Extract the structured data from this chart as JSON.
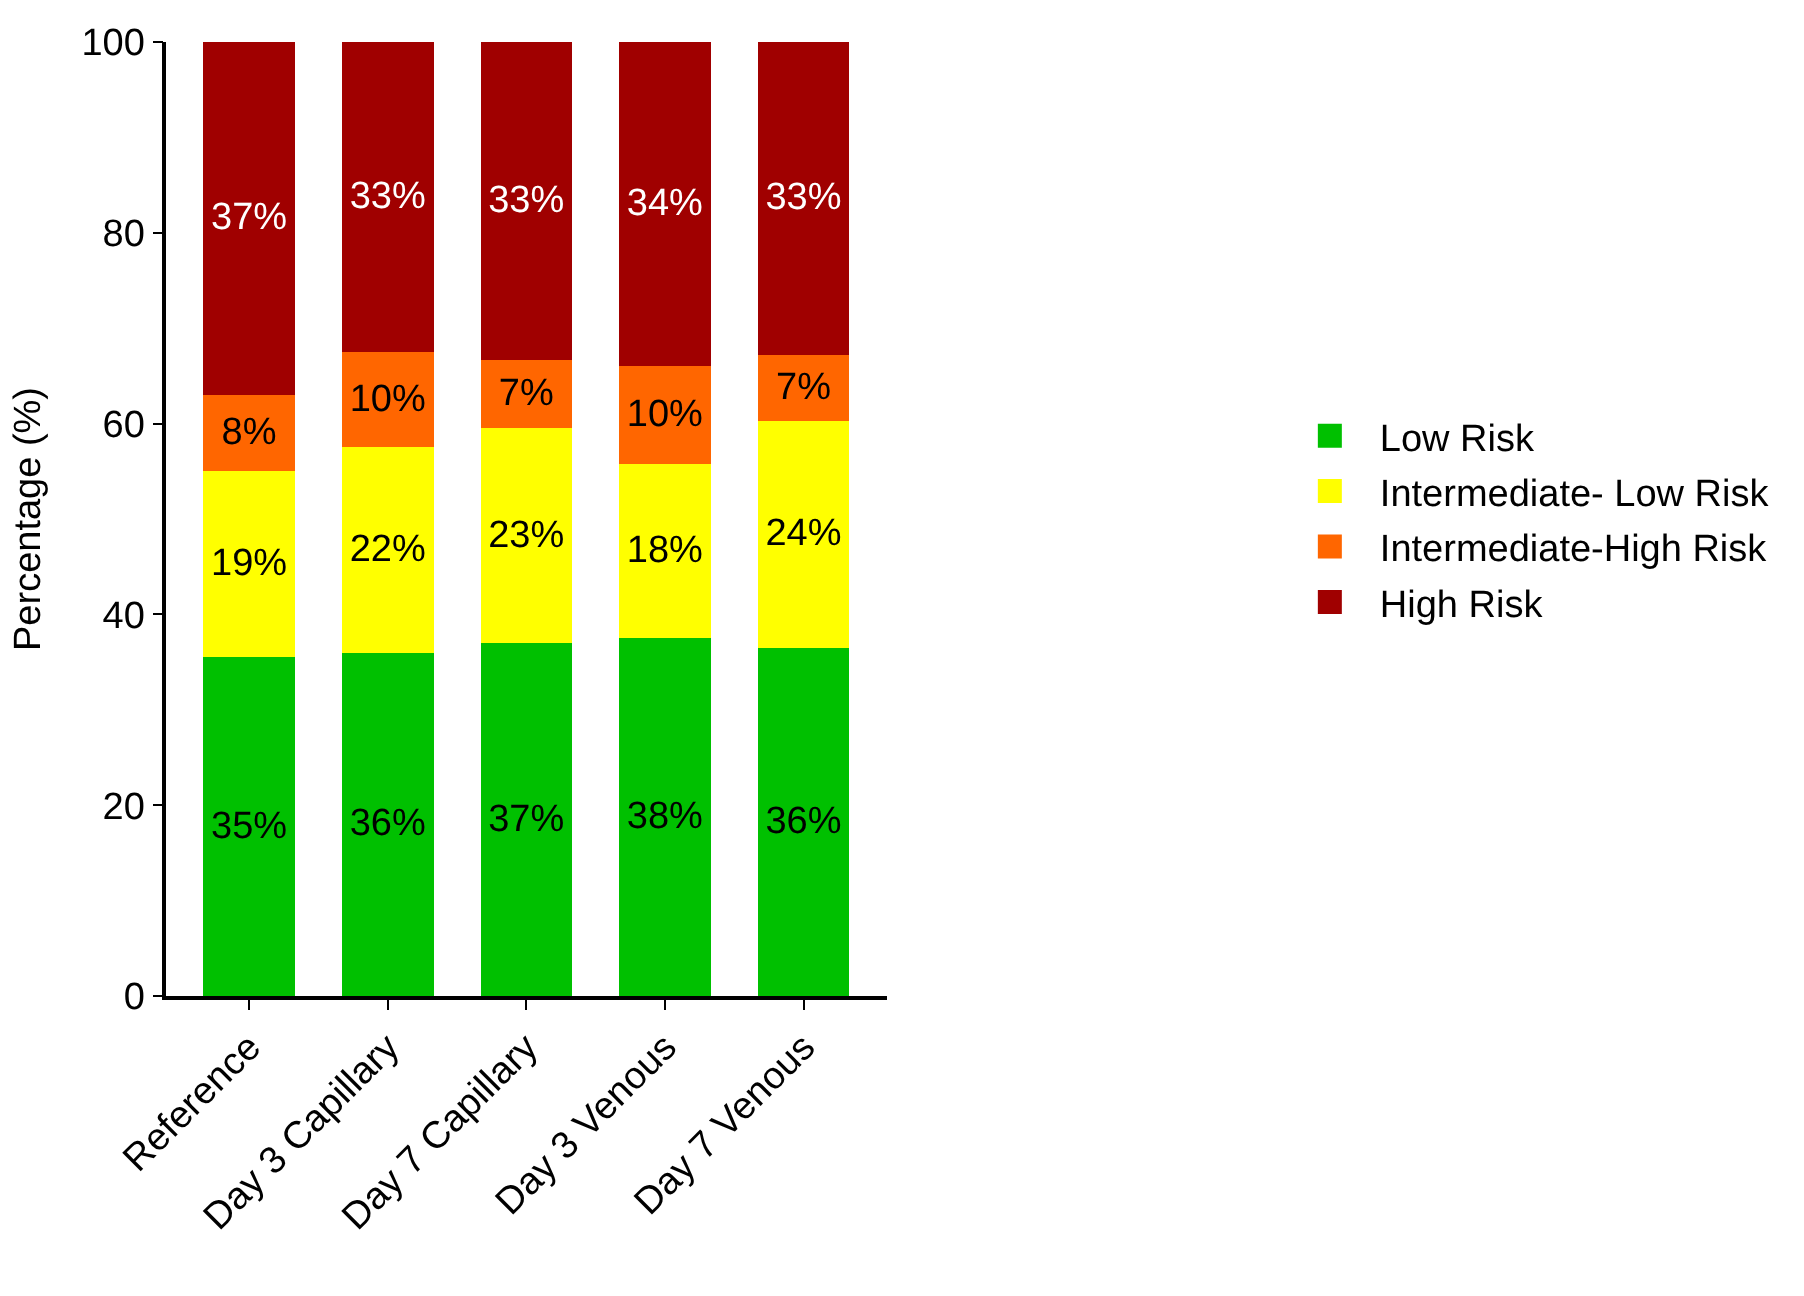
{
  "chart_data": {
    "type": "bar",
    "stacked": true,
    "ylabel": "Percentage (%)",
    "categories": [
      "Reference",
      "Day 3 Capillary",
      "Day 7 Capillary",
      "Day 3 Venous",
      "Day 7 Venous"
    ],
    "series": [
      {
        "name": "Low Risk",
        "color": "#00c000",
        "values": [
          35.5,
          36,
          37,
          37.5,
          36.5
        ],
        "value_labels": [
          "35%",
          "36%",
          "37%",
          "38%",
          "36%"
        ]
      },
      {
        "name": "Intermediate- Low Risk",
        "color": "#ffff00",
        "values": [
          19.5,
          21.5,
          22.5,
          18.3,
          23.8
        ],
        "value_labels": [
          "19%",
          "22%",
          "23%",
          "18%",
          "24%"
        ]
      },
      {
        "name": "Intermediate-High Risk",
        "color": "#ff6600",
        "values": [
          8,
          10,
          7.2,
          10.2,
          6.9
        ],
        "value_labels": [
          "8%",
          "10%",
          "7%",
          "10%",
          "7%"
        ]
      },
      {
        "name": "High Risk",
        "color": "#a00000",
        "values": [
          37,
          32.5,
          33.3,
          34,
          32.8
        ],
        "value_labels": [
          "37%",
          "33%",
          "33%",
          "34%",
          "33%"
        ]
      }
    ],
    "ylim": [
      0,
      100
    ],
    "yticks": [
      0,
      20,
      40,
      60,
      80,
      100
    ],
    "legend": "right"
  }
}
